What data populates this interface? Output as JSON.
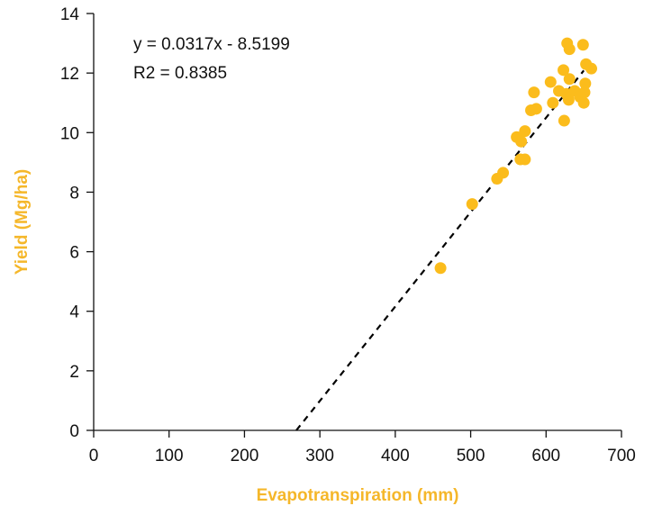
{
  "chart_data": {
    "type": "scatter",
    "title": "",
    "xlabel": "Evapotranspiration (mm)",
    "ylabel": "Yield (Mg/ha)",
    "xlim": [
      0,
      700
    ],
    "ylim": [
      0,
      14
    ],
    "x_ticks": [
      0,
      100,
      200,
      300,
      400,
      500,
      600,
      700
    ],
    "y_ticks": [
      0,
      2,
      4,
      6,
      8,
      10,
      12,
      14
    ],
    "grid": false,
    "legend": "none",
    "colors": {
      "points": "#FBBC1C",
      "axis_title": "#F5B72A",
      "trendline": "#000000"
    },
    "annotations": {
      "equation": "y = 0.0317x - 8.5199",
      "r2": "R2 = 0.8385"
    },
    "trendline": {
      "slope": 0.0317,
      "intercept": -8.5199,
      "x_range": [
        268.8,
        650
      ]
    },
    "series": [
      {
        "points": [
          {
            "x": 460,
            "y": 5.45
          },
          {
            "x": 502,
            "y": 7.6
          },
          {
            "x": 535,
            "y": 8.45
          },
          {
            "x": 543,
            "y": 8.65
          },
          {
            "x": 561,
            "y": 9.85
          },
          {
            "x": 567,
            "y": 9.7
          },
          {
            "x": 566,
            "y": 9.1
          },
          {
            "x": 572,
            "y": 9.1
          },
          {
            "x": 572,
            "y": 10.05
          },
          {
            "x": 580,
            "y": 10.75
          },
          {
            "x": 587,
            "y": 10.8
          },
          {
            "x": 584,
            "y": 11.35
          },
          {
            "x": 606,
            "y": 11.7
          },
          {
            "x": 609,
            "y": 11.0
          },
          {
            "x": 617,
            "y": 11.4
          },
          {
            "x": 623,
            "y": 12.1
          },
          {
            "x": 624,
            "y": 10.4
          },
          {
            "x": 627,
            "y": 11.3
          },
          {
            "x": 628,
            "y": 13.0
          },
          {
            "x": 630,
            "y": 11.1
          },
          {
            "x": 631,
            "y": 11.8
          },
          {
            "x": 631,
            "y": 12.8
          },
          {
            "x": 638,
            "y": 11.4
          },
          {
            "x": 645,
            "y": 11.2
          },
          {
            "x": 649,
            "y": 12.95
          },
          {
            "x": 650,
            "y": 11.0
          },
          {
            "x": 651,
            "y": 11.35
          },
          {
            "x": 652,
            "y": 11.65
          },
          {
            "x": 653,
            "y": 12.3
          },
          {
            "x": 660,
            "y": 12.15
          }
        ]
      }
    ]
  }
}
